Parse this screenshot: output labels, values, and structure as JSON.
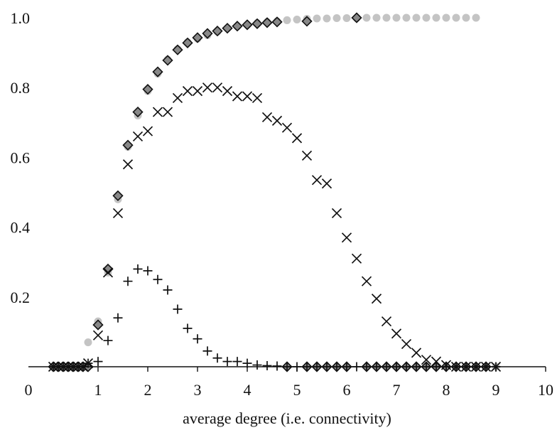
{
  "chart_data": {
    "type": "scatter",
    "title": "",
    "xlabel": "average degree (i.e. connectivity)",
    "ylabel": "",
    "xlim": [
      0,
      10
    ],
    "ylim": [
      0,
      1
    ],
    "x_ticks": [
      "0",
      "1",
      "2",
      "3",
      "4",
      "5",
      "6",
      "7",
      "8",
      "9",
      "10"
    ],
    "y_ticks": [
      "0.2",
      "0.4",
      "0.6",
      "0.8",
      "1.0"
    ],
    "grid": false,
    "series": [
      {
        "marker": "circle",
        "color": "#c4c4c4",
        "x": [
          0.1,
          0.2,
          0.3,
          0.4,
          0.5,
          0.6,
          0.7,
          0.8,
          1.0,
          1.2,
          1.4,
          1.6,
          1.8,
          2.0,
          2.2,
          2.4,
          2.6,
          2.8,
          3.0,
          3.2,
          3.4,
          3.6,
          3.8,
          4.0,
          4.2,
          4.4,
          4.6,
          4.8,
          5.0,
          5.2,
          5.4,
          5.6,
          5.8,
          6.0,
          6.2,
          6.4,
          6.6,
          6.8,
          7.0,
          7.2,
          7.4,
          7.6,
          7.8,
          8.0,
          8.2,
          8.4,
          8.6,
          8.8,
          9.0
        ],
        "y": [
          0,
          0,
          0,
          0,
          0,
          0,
          0,
          0.07,
          0.13,
          0.27,
          0.48,
          0.63,
          0.72,
          0.79,
          0.84,
          0.88,
          0.91,
          0.93,
          0.94,
          0.95,
          0.96,
          0.97,
          0.975,
          0.98,
          0.985,
          0.988,
          0.99,
          0.993,
          0.995,
          0.997,
          0.998,
          0.998,
          0.999,
          0.999,
          0.999,
          1,
          1,
          1,
          1,
          1,
          1,
          1,
          1,
          1,
          1,
          1,
          1,
          0,
          0
        ]
      },
      {
        "marker": "diamond",
        "color": "#888888",
        "x": [
          0.1,
          0.2,
          0.3,
          0.4,
          0.5,
          0.6,
          0.7,
          0.8,
          1.0,
          1.2,
          1.4,
          1.6,
          1.8,
          2.0,
          2.2,
          2.4,
          2.6,
          2.8,
          3.0,
          3.2,
          3.4,
          3.6,
          3.8,
          4.0,
          4.2,
          4.4,
          4.6,
          5.2,
          6.2,
          4.8,
          5.2,
          5.4,
          5.6,
          5.8,
          6.0,
          6.4,
          6.6,
          6.8,
          7.0,
          7.2,
          7.4,
          7.6,
          7.8,
          8.0,
          8.2,
          8.4,
          8.6,
          8.8
        ],
        "y": [
          0,
          0,
          0,
          0,
          0,
          0,
          0,
          0,
          0.12,
          0.28,
          0.49,
          0.635,
          0.73,
          0.795,
          0.845,
          0.878,
          0.908,
          0.928,
          0.943,
          0.955,
          0.962,
          0.97,
          0.976,
          0.98,
          0.983,
          0.986,
          0.988,
          0.99,
          1.0,
          0,
          0,
          0,
          0,
          0,
          0,
          0,
          0,
          0,
          0,
          0,
          0,
          0,
          0,
          0,
          0,
          0,
          0,
          0
        ]
      },
      {
        "marker": "cross",
        "color": "#111111",
        "x": [
          0.1,
          0.2,
          0.3,
          0.4,
          0.5,
          0.6,
          0.7,
          0.8,
          1.0,
          1.2,
          1.4,
          1.6,
          1.8,
          2.0,
          2.2,
          2.4,
          2.6,
          2.8,
          3.0,
          3.2,
          3.4,
          3.6,
          3.8,
          4.0,
          4.2,
          4.4,
          4.6,
          4.8,
          5.0,
          5.2,
          5.4,
          5.6,
          5.8,
          6.0,
          6.2,
          6.4,
          6.6,
          6.8,
          7.0,
          7.2,
          7.4,
          7.6,
          7.8,
          8.0,
          8.2,
          8.4,
          8.6,
          8.8,
          9.0
        ],
        "y": [
          0,
          0,
          0,
          0,
          0,
          0,
          0,
          0.01,
          0.09,
          0.27,
          0.44,
          0.58,
          0.66,
          0.675,
          0.73,
          0.73,
          0.77,
          0.79,
          0.79,
          0.8,
          0.8,
          0.79,
          0.775,
          0.775,
          0.77,
          0.715,
          0.705,
          0.685,
          0.655,
          0.605,
          0.535,
          0.525,
          0.44,
          0.37,
          0.31,
          0.245,
          0.195,
          0.13,
          0.095,
          0.065,
          0.04,
          0.02,
          0.015,
          0.005,
          0,
          0,
          0,
          0,
          0
        ]
      },
      {
        "marker": "plus",
        "color": "#111111",
        "x": [
          0.1,
          0.2,
          0.3,
          0.4,
          0.5,
          0.6,
          0.7,
          0.8,
          1.0,
          1.2,
          1.4,
          1.6,
          1.8,
          2.0,
          2.2,
          2.4,
          2.6,
          2.8,
          3.0,
          3.2,
          3.4,
          3.6,
          3.8,
          4.0,
          4.2,
          4.4,
          4.6,
          4.8,
          5.0,
          5.2,
          5.4,
          5.6,
          5.8,
          6.0,
          6.2,
          6.4,
          6.6,
          6.8,
          7.0,
          7.2,
          7.4,
          7.6,
          7.8,
          8.0,
          8.2,
          8.4,
          8.6,
          8.8,
          9.0
        ],
        "y": [
          0,
          0,
          0,
          0,
          0,
          0,
          0,
          0.01,
          0.015,
          0.075,
          0.14,
          0.245,
          0.28,
          0.275,
          0.25,
          0.22,
          0.165,
          0.11,
          0.08,
          0.045,
          0.025,
          0.015,
          0.015,
          0.01,
          0.005,
          0.003,
          0.002,
          0,
          0,
          0,
          0,
          0,
          0,
          0,
          0,
          0,
          0,
          0,
          0,
          0,
          0,
          0,
          0,
          0,
          0,
          0,
          0,
          0,
          0
        ]
      }
    ]
  }
}
